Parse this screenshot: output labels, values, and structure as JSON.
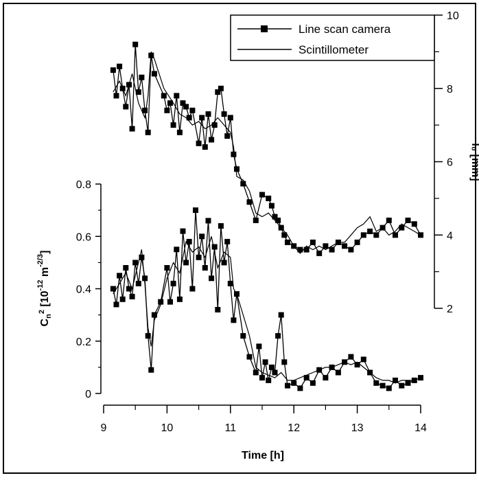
{
  "chart_data": [
    {
      "type": "line",
      "panel": "lower",
      "xlabel": "Time [h]",
      "ylabel_main": "C",
      "ylabel_sub": "n",
      "ylabel_sup": "2",
      "ylabel_rest": " [10",
      "ylabel_sup2": "-12",
      "ylabel_rest2": " m",
      "ylabel_sup3": "-2/3",
      "ylabel_end": "]",
      "xlim": [
        9,
        14
      ],
      "ylim": [
        0,
        0.8
      ],
      "x_ticks": [
        "9",
        "10",
        "11",
        "12",
        "13",
        "14"
      ],
      "y_ticks": [
        "0",
        "0.2",
        "0.4",
        "0.6",
        "0.8"
      ],
      "series": [
        {
          "name": "Line scan camera",
          "marker": "square",
          "x": [
            9.15,
            9.2,
            9.25,
            9.3,
            9.35,
            9.4,
            9.45,
            9.5,
            9.55,
            9.6,
            9.65,
            9.7,
            9.75,
            9.8,
            9.9,
            10.0,
            10.05,
            10.1,
            10.15,
            10.2,
            10.25,
            10.3,
            10.35,
            10.4,
            10.45,
            10.5,
            10.55,
            10.6,
            10.65,
            10.7,
            10.75,
            10.8,
            10.85,
            10.9,
            10.95,
            11.0,
            11.05,
            11.1,
            11.2,
            11.3,
            11.4,
            11.45,
            11.5,
            11.55,
            11.6,
            11.65,
            11.7,
            11.75,
            11.8,
            11.85,
            11.9,
            12.0,
            12.1,
            12.2,
            12.3,
            12.4,
            12.5,
            12.6,
            12.7,
            12.8,
            12.9,
            13.0,
            13.1,
            13.2,
            13.3,
            13.4,
            13.5,
            13.6,
            13.7,
            13.8,
            13.9,
            14.0
          ],
          "y": [
            0.4,
            0.34,
            0.45,
            0.36,
            0.48,
            0.4,
            0.37,
            0.5,
            0.42,
            0.52,
            0.44,
            0.22,
            0.09,
            0.3,
            0.35,
            0.48,
            0.35,
            0.42,
            0.55,
            0.36,
            0.62,
            0.5,
            0.58,
            0.4,
            0.7,
            0.52,
            0.6,
            0.48,
            0.66,
            0.44,
            0.56,
            0.32,
            0.64,
            0.5,
            0.58,
            0.42,
            0.28,
            0.38,
            0.22,
            0.14,
            0.08,
            0.18,
            0.06,
            0.12,
            0.05,
            0.1,
            0.08,
            0.22,
            0.3,
            0.12,
            0.03,
            0.04,
            0.02,
            0.06,
            0.04,
            0.09,
            0.06,
            0.1,
            0.08,
            0.12,
            0.14,
            0.11,
            0.13,
            0.08,
            0.04,
            0.03,
            0.02,
            0.05,
            0.03,
            0.04,
            0.05,
            0.06
          ]
        },
        {
          "name": "Scintillometer",
          "marker": "none",
          "x": [
            9.15,
            9.25,
            9.35,
            9.45,
            9.55,
            9.6,
            9.65,
            9.7,
            9.75,
            9.8,
            9.9,
            10.0,
            10.1,
            10.2,
            10.3,
            10.4,
            10.5,
            10.6,
            10.7,
            10.8,
            10.9,
            11.0,
            11.05,
            11.1,
            11.2,
            11.3,
            11.4,
            11.5,
            11.6,
            11.7,
            11.8,
            11.9,
            12.0,
            12.1,
            12.2,
            12.3,
            12.4,
            12.5,
            12.6,
            12.7,
            12.8,
            12.9,
            13.0,
            13.1,
            13.2,
            13.3,
            13.4,
            13.5,
            13.6,
            13.7,
            13.8,
            13.9,
            14.0
          ],
          "y": [
            0.38,
            0.42,
            0.46,
            0.4,
            0.5,
            0.55,
            0.42,
            0.25,
            0.18,
            0.28,
            0.34,
            0.44,
            0.5,
            0.46,
            0.58,
            0.54,
            0.56,
            0.52,
            0.6,
            0.48,
            0.54,
            0.52,
            0.4,
            0.38,
            0.3,
            0.22,
            0.1,
            0.08,
            0.07,
            0.06,
            0.08,
            0.05,
            0.05,
            0.06,
            0.07,
            0.08,
            0.09,
            0.1,
            0.1,
            0.11,
            0.12,
            0.11,
            0.12,
            0.1,
            0.08,
            0.06,
            0.05,
            0.05,
            0.04,
            0.05,
            0.05,
            0.05,
            0.06
          ]
        }
      ]
    },
    {
      "type": "line",
      "panel": "upper",
      "ylabel": "l₀ [mm]",
      "xlim": [
        9,
        14
      ],
      "ylim": [
        2,
        10
      ],
      "y_ticks": [
        "2",
        "4",
        "6",
        "8",
        "10"
      ],
      "series": [
        {
          "name": "Line scan camera",
          "marker": "square",
          "x": [
            9.15,
            9.2,
            9.25,
            9.3,
            9.35,
            9.4,
            9.45,
            9.5,
            9.55,
            9.6,
            9.65,
            9.7,
            9.75,
            9.8,
            9.95,
            10.0,
            10.05,
            10.1,
            10.15,
            10.2,
            10.25,
            10.3,
            10.35,
            10.4,
            10.5,
            10.55,
            10.6,
            10.65,
            10.7,
            10.75,
            10.8,
            10.85,
            10.9,
            10.95,
            11.0,
            11.05,
            11.1,
            11.2,
            11.3,
            11.4,
            11.5,
            11.6,
            11.65,
            11.7,
            11.75,
            11.8,
            11.85,
            11.9,
            12.0,
            12.1,
            12.2,
            12.3,
            12.4,
            12.5,
            12.6,
            12.7,
            12.8,
            12.9,
            13.0,
            13.1,
            13.2,
            13.3,
            13.4,
            13.5,
            13.6,
            13.7,
            13.8,
            13.9,
            14.0
          ],
          "y": [
            8.5,
            7.8,
            8.6,
            8.0,
            7.5,
            8.1,
            6.9,
            9.2,
            7.9,
            8.3,
            7.4,
            6.8,
            8.9,
            8.4,
            7.8,
            7.4,
            7.6,
            7.0,
            7.8,
            6.8,
            7.6,
            7.5,
            7.2,
            7.4,
            6.5,
            7.2,
            6.4,
            7.3,
            6.6,
            7.0,
            7.9,
            8.0,
            7.3,
            6.7,
            7.2,
            6.2,
            5.8,
            5.4,
            4.9,
            4.4,
            5.1,
            5.0,
            4.8,
            4.5,
            4.4,
            4.2,
            4.0,
            3.8,
            3.7,
            3.6,
            3.6,
            3.8,
            3.5,
            3.7,
            3.6,
            3.8,
            3.7,
            3.6,
            3.8,
            4.0,
            4.1,
            4.0,
            4.2,
            4.4,
            4.0,
            4.2,
            4.4,
            4.3,
            4.0
          ]
        },
        {
          "name": "Scintillometer",
          "marker": "none",
          "x": [
            9.15,
            9.25,
            9.35,
            9.45,
            9.55,
            9.65,
            9.7,
            9.75,
            9.8,
            9.95,
            10.1,
            10.2,
            10.3,
            10.4,
            10.5,
            10.6,
            10.7,
            10.8,
            10.9,
            11.0,
            11.05,
            11.1,
            11.2,
            11.3,
            11.4,
            11.5,
            11.6,
            11.7,
            11.8,
            11.9,
            12.0,
            12.1,
            12.2,
            12.3,
            12.4,
            12.5,
            12.6,
            12.7,
            12.8,
            12.9,
            13.0,
            13.1,
            13.2,
            13.3,
            13.4,
            13.5,
            13.6,
            13.7,
            13.8,
            13.9,
            14.0
          ],
          "y": [
            7.9,
            8.2,
            7.8,
            8.4,
            7.6,
            7.2,
            7.8,
            9.0,
            8.8,
            8.0,
            7.6,
            7.3,
            7.2,
            7.0,
            7.1,
            6.9,
            7.0,
            7.2,
            7.0,
            6.8,
            6.4,
            5.6,
            5.5,
            5.2,
            4.6,
            4.5,
            4.6,
            4.4,
            4.2,
            4.0,
            3.7,
            3.5,
            3.7,
            3.6,
            3.7,
            3.6,
            3.7,
            3.8,
            3.8,
            4.0,
            4.2,
            4.3,
            4.5,
            4.1,
            4.2,
            4.0,
            4.1,
            4.3,
            4.2,
            4.1,
            4.0
          ]
        }
      ]
    }
  ]
}
